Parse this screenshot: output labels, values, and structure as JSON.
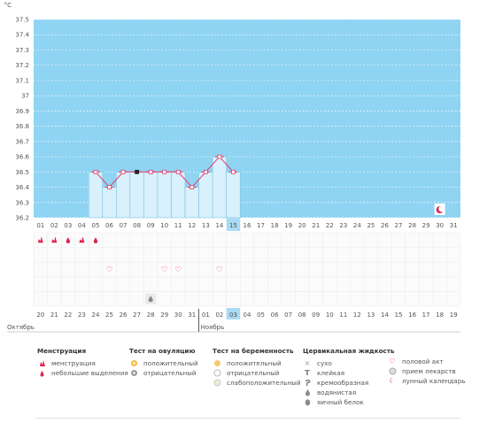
{
  "chart_data": {
    "type": "line",
    "ylabel": "°C",
    "y_ticks": [
      "37.5",
      "37.4",
      "37.3",
      "37.2",
      "37.1",
      "37",
      "36.9",
      "36.8",
      "36.7",
      "36.6",
      "36.5",
      "36.4",
      "36.3",
      "36.2"
    ],
    "ylim": [
      36.2,
      37.5
    ],
    "x": [
      "01",
      "02",
      "03",
      "04",
      "05",
      "06",
      "07",
      "08",
      "09",
      "10",
      "11",
      "12",
      "13",
      "14",
      "15",
      "16",
      "17",
      "18",
      "19",
      "20",
      "21",
      "22",
      "23",
      "24",
      "25",
      "26",
      "27",
      "28",
      "29",
      "30",
      "31"
    ],
    "highlighted_day": "15",
    "series": [
      {
        "values": [
          null,
          null,
          null,
          null,
          36.5,
          36.4,
          36.5,
          36.5,
          36.5,
          36.5,
          36.5,
          36.4,
          36.5,
          36.6,
          36.5,
          null,
          null,
          null,
          null,
          null,
          null,
          null,
          null,
          null,
          null,
          null,
          null,
          null,
          null,
          null,
          null
        ]
      }
    ],
    "marked_point_day": "08",
    "grid": true,
    "background_color": "#8fd4f2",
    "series_color": "#e33a6a"
  },
  "calendar": {
    "days": [
      "20",
      "21",
      "22",
      "23",
      "24",
      "25",
      "26",
      "27",
      "28",
      "29",
      "30",
      "31",
      "01",
      "02",
      "03",
      "04",
      "05",
      "06",
      "07",
      "08",
      "09",
      "10",
      "11",
      "12",
      "13",
      "14",
      "15",
      "16",
      "17",
      "18",
      "19"
    ],
    "weekend_days": [
      2,
      3,
      9,
      10,
      16,
      17,
      23,
      24,
      30
    ],
    "month1": "Октябрь",
    "month2": "Ноябрь",
    "menstruation_days": [
      0,
      1,
      2,
      3,
      4
    ],
    "menstruation_small_days": [
      2,
      4
    ],
    "intercourse_days": [
      5,
      9,
      10,
      13
    ],
    "eggwhite_days": [
      8
    ],
    "lunar_day": 29,
    "highlight_color": "#a9dbf2"
  },
  "legend": {
    "menstruation": {
      "title": "Менструация",
      "items": [
        {
          "label": "менструация",
          "icon": "menstruation-icon"
        },
        {
          "label": "небольшие выделения",
          "icon": "spotting-icon"
        }
      ]
    },
    "ovulation": {
      "title": "Тест на овуляцию",
      "items": [
        {
          "label": "положительный",
          "icon": "ovulation-positive-icon"
        },
        {
          "label": "отрицательный",
          "icon": "ovulation-negative-icon"
        }
      ]
    },
    "pregnancy": {
      "title": "Тест на беременность",
      "items": [
        {
          "label": "положительный",
          "icon": "pregnancy-positive-icon"
        },
        {
          "label": "отрицательный",
          "icon": "pregnancy-negative-icon"
        },
        {
          "label": "слабоположительный",
          "icon": "pregnancy-weak-icon"
        }
      ]
    },
    "cervical": {
      "title": "Цервикальная жидкость",
      "items": [
        {
          "label": "сухо",
          "icon": "dry-icon"
        },
        {
          "label": "клейкая",
          "icon": "sticky-icon"
        },
        {
          "label": "кремообразная",
          "icon": "creamy-icon"
        },
        {
          "label": "водянистая",
          "icon": "watery-icon"
        },
        {
          "label": "яичный белок",
          "icon": "eggwhite-icon"
        }
      ]
    },
    "other": {
      "items": [
        {
          "label": "половой акт",
          "icon": "heart-icon"
        },
        {
          "label": "прием лекарств",
          "icon": "pill-icon"
        },
        {
          "label": "лунный календарь",
          "icon": "moon-icon"
        }
      ]
    }
  }
}
